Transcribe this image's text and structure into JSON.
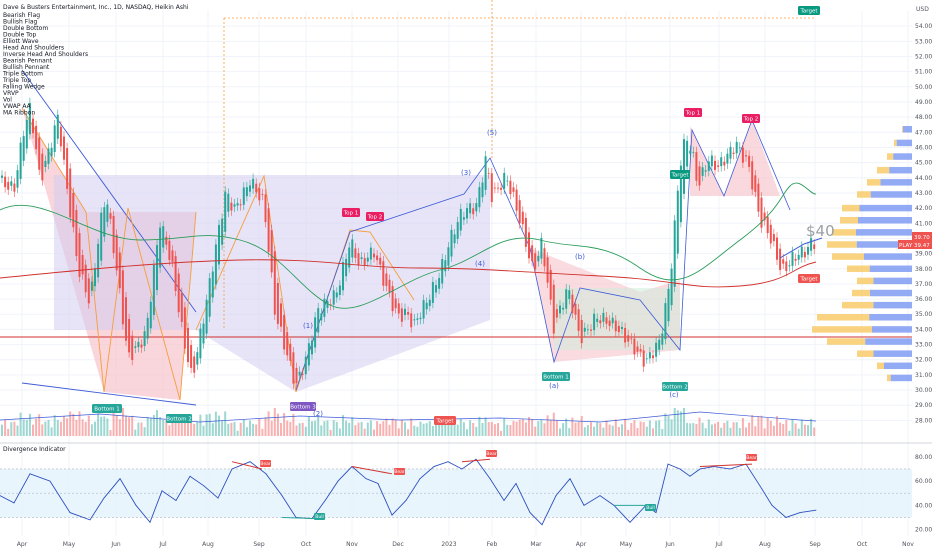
{
  "header": {
    "symbol_title": "Dave & Busters Entertainment, Inc., 1D, NASDAQ, Heikin Ashi",
    "indicator_labels": [
      "Bearish Flag",
      "Bullish Flag",
      "Double Bottom",
      "Double Top",
      "Elliott Wave",
      "Head And Shoulders",
      "Inverse Head And Shoulders",
      "Bearish Pennant",
      "Bullish Pennant",
      "Triple Bottom",
      "Triple Top",
      "Falling Wedge",
      "VRVP",
      "Vol",
      "VWAP AA",
      "MA Ribbon"
    ]
  },
  "currency": "USD",
  "price_label": "$40",
  "subpanel_title": "Divergence Indicator",
  "colors": {
    "up": "#26a69a",
    "down": "#ef5350",
    "pattern_pink": "#f7c5cc",
    "pattern_purple": "#d6cdf0",
    "pattern_green": "#c9ecd9",
    "profile_blue": "#6f8ff2",
    "profile_orange": "#f7c14a",
    "rsi_line": "#2b4fbf",
    "ma_green": "#2a9d5a",
    "ma_red": "#d0312d"
  },
  "chart_data": [
    {
      "type": "candlestick",
      "ylim": [
        27.3,
        55
      ],
      "y_ticks": [
        "54.00",
        "53.00",
        "52.00",
        "51.00",
        "50.00",
        "49.00",
        "48.00",
        "47.00",
        "46.00",
        "45.00",
        "44.00",
        "43.00",
        "42.00",
        "41.00",
        "40.00",
        "39.00",
        "38.00",
        "37.00",
        "36.00",
        "35.00",
        "34.00",
        "33.00",
        "32.00",
        "31.00",
        "30.00",
        "29.00",
        "28.00"
      ],
      "x_ticks": [
        "Apr",
        "May",
        "Jun",
        "Jul",
        "Aug",
        "Sep",
        "Oct",
        "Nov",
        "Dec",
        "2023",
        "Feb",
        "Mar",
        "Apr",
        "May",
        "Jun",
        "Jul",
        "Aug",
        "Sep",
        "Oct",
        "Nov"
      ],
      "path_x": [
        0,
        14,
        24,
        30,
        34,
        40,
        58,
        67,
        78,
        90,
        100,
        106,
        120,
        128,
        146,
        160,
        172,
        182,
        192,
        210,
        226,
        234,
        250,
        264,
        275,
        285,
        296,
        306,
        318,
        336,
        350,
        360,
        374,
        386,
        398,
        406,
        414,
        428,
        440,
        450,
        462,
        476,
        486,
        492,
        506,
        520,
        533,
        542,
        554,
        568,
        580,
        596,
        614,
        624,
        634,
        646,
        660,
        670,
        680,
        686,
        692,
        698,
        708,
        718,
        736,
        748,
        760,
        770,
        782,
        794,
        806,
        812
      ],
      "path_close": [
        44,
        43,
        47,
        48.5,
        47,
        44,
        48,
        43,
        38,
        36,
        41,
        43,
        36,
        32,
        34,
        41,
        38,
        34,
        31,
        37,
        43,
        42,
        44,
        42,
        35,
        33,
        30.5,
        32,
        35,
        36.5,
        40,
        38,
        39,
        37,
        35,
        35,
        34,
        36,
        38,
        40,
        41.5,
        42,
        45.5,
        43,
        44,
        41,
        38,
        40,
        34,
        36.5,
        33.5,
        35,
        34,
        33.5,
        33,
        32,
        33,
        37,
        45,
        47,
        46,
        43.5,
        45,
        44.5,
        46.5,
        45,
        41,
        40,
        38,
        39,
        39,
        39.5
      ],
      "series": [
        {
          "name": "Elliott Wave",
          "labels": [
            "(1)",
            "(2)",
            "(3)",
            "(4)",
            "(5)",
            "(a)",
            "(b)",
            "(c)"
          ]
        },
        {
          "name": "Double Bottom",
          "labels": [
            "Bottom 1",
            "Bottom 2"
          ]
        },
        {
          "name": "Triple Bottom",
          "labels": [
            "Bottom 1",
            "Bottom 2",
            "Bottom 3"
          ]
        },
        {
          "name": "Double Top",
          "labels": [
            "Top 1",
            "Top 2"
          ]
        },
        {
          "name": "Triple Top",
          "labels": [
            "Top 1",
            "Top 2"
          ]
        }
      ],
      "target_labels": [
        "Target",
        "Target",
        "Target",
        "Target"
      ],
      "price_tags": [
        {
          "value": "39.70",
          "color": "#ef5350"
        },
        {
          "value": "39.47",
          "color": "#ef5350"
        }
      ],
      "ticker_tag": {
        "text": "PLAY",
        "color": "#ef5350"
      }
    },
    {
      "type": "line",
      "name": "Divergence Indicator",
      "ylim": [
        18,
        84
      ],
      "y_ticks": [
        "80.00",
        "60.00",
        "40.00",
        "20.00"
      ],
      "x": [
        0,
        14,
        30,
        50,
        70,
        90,
        104,
        120,
        136,
        150,
        162,
        176,
        190,
        204,
        218,
        232,
        250,
        266,
        282,
        296,
        312,
        326,
        338,
        352,
        366,
        378,
        392,
        406,
        420,
        434,
        448,
        462,
        476,
        490,
        504,
        516,
        530,
        542,
        556,
        570,
        584,
        600,
        614,
        630,
        646,
        656,
        668,
        680,
        690,
        700,
        714,
        730,
        746,
        760,
        772,
        786,
        800,
        816
      ],
      "values": [
        48,
        42,
        66,
        60,
        34,
        28,
        46,
        62,
        40,
        26,
        52,
        44,
        64,
        56,
        46,
        70,
        76,
        66,
        48,
        30,
        29,
        45,
        60,
        72,
        62,
        58,
        32,
        44,
        62,
        72,
        76,
        70,
        78,
        62,
        44,
        58,
        34,
        24,
        48,
        62,
        40,
        48,
        40,
        26,
        40,
        34,
        74,
        70,
        64,
        70,
        72,
        70,
        74,
        56,
        40,
        30,
        34,
        36
      ],
      "labels": [
        "Bear",
        "Bear",
        "Bear",
        "Bear",
        "Bull",
        "Bull"
      ]
    }
  ]
}
